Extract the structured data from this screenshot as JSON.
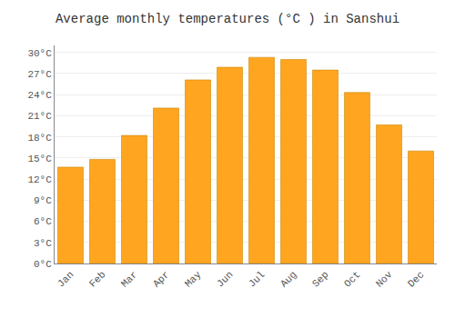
{
  "chart_data": {
    "type": "bar",
    "title": "Average monthly temperatures (°C ) in Sanshui",
    "categories": [
      "Jan",
      "Feb",
      "Mar",
      "Apr",
      "May",
      "Jun",
      "Jul",
      "Aug",
      "Sep",
      "Oct",
      "Nov",
      "Dec"
    ],
    "values": [
      13.7,
      14.8,
      18.2,
      22.1,
      26.1,
      27.9,
      29.3,
      29.0,
      27.5,
      24.3,
      19.7,
      16.0
    ],
    "color": "#FFA520",
    "ylim": [
      0,
      31
    ],
    "yticks": [
      {
        "value": 0,
        "label": "0°C"
      },
      {
        "value": 3,
        "label": "3°C"
      },
      {
        "value": 6,
        "label": "6°C"
      },
      {
        "value": 9,
        "label": "9°C"
      },
      {
        "value": 12,
        "label": "12°C"
      },
      {
        "value": 15,
        "label": "15°C"
      },
      {
        "value": 18,
        "label": "18°C"
      },
      {
        "value": 21,
        "label": "21°C"
      },
      {
        "value": 24,
        "label": "24°C"
      },
      {
        "value": 27,
        "label": "27°C"
      },
      {
        "value": 30,
        "label": "30°C"
      }
    ],
    "grid": true
  }
}
